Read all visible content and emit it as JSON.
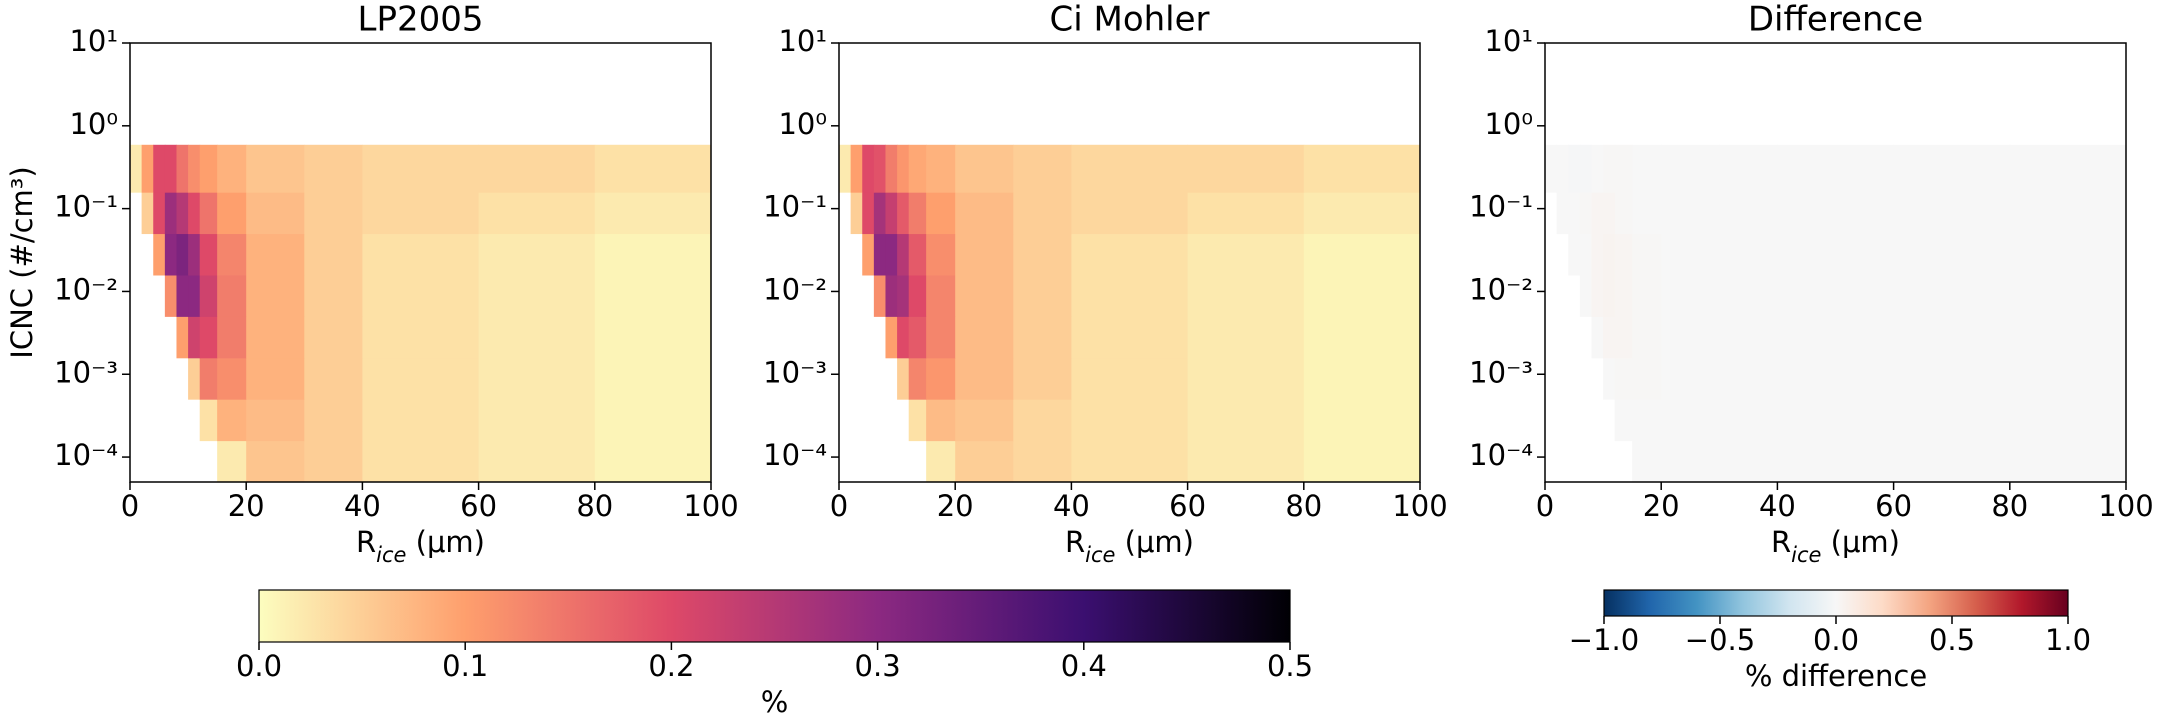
{
  "chart_data": [
    {
      "type": "heatmap",
      "title": "LP2005",
      "xlabel": [
        "R",
        "ice",
        " (μm)"
      ],
      "ylabel": "ICNC (#/cm³)",
      "x_edges": [
        0,
        2,
        4,
        6,
        8,
        10,
        12,
        15,
        20,
        30,
        40,
        60,
        80,
        100
      ],
      "y_edges": [
        5e-05,
        0.000158,
        0.0005,
        0.00158,
        0.005,
        0.0158,
        0.05,
        0.158,
        0.59
      ],
      "values": [
        [
          null,
          null,
          null,
          null,
          null,
          null,
          null,
          0.02,
          0.06,
          0.05,
          0.03,
          0.02,
          0.01
        ],
        [
          null,
          null,
          null,
          null,
          null,
          null,
          0.03,
          0.08,
          0.07,
          0.05,
          0.03,
          0.02,
          0.01
        ],
        [
          null,
          null,
          null,
          null,
          null,
          0.05,
          0.14,
          0.12,
          0.08,
          0.05,
          0.03,
          0.02,
          0.01
        ],
        [
          null,
          null,
          null,
          null,
          0.1,
          0.22,
          0.2,
          0.14,
          0.08,
          0.05,
          0.03,
          0.02,
          0.01
        ],
        [
          null,
          null,
          null,
          0.12,
          0.3,
          0.3,
          0.22,
          0.14,
          0.08,
          0.05,
          0.03,
          0.02,
          0.01
        ],
        [
          null,
          null,
          0.1,
          0.3,
          0.32,
          0.28,
          0.2,
          0.13,
          0.08,
          0.05,
          0.03,
          0.02,
          0.01
        ],
        [
          null,
          0.05,
          0.2,
          0.28,
          0.25,
          0.2,
          0.15,
          0.1,
          0.07,
          0.05,
          0.04,
          0.03,
          0.02
        ],
        [
          0.02,
          0.1,
          0.2,
          0.2,
          0.15,
          0.12,
          0.1,
          0.08,
          0.06,
          0.05,
          0.04,
          0.04,
          0.03
        ]
      ],
      "xlim": [
        0,
        100
      ],
      "xticks": [
        0,
        20,
        40,
        60,
        80,
        100
      ],
      "ylim": [
        5e-05,
        10
      ],
      "log_y": true,
      "yticks": [
        {
          "value": 10,
          "label": "10¹"
        },
        {
          "value": 1,
          "label": "10⁰"
        },
        {
          "value": 0.1,
          "label": "10⁻¹"
        },
        {
          "value": 0.01,
          "label": "10⁻²"
        },
        {
          "value": 0.001,
          "label": "10⁻³"
        },
        {
          "value": 0.0001,
          "label": "10⁻⁴"
        }
      ]
    },
    {
      "type": "heatmap",
      "title": "Ci Mohler",
      "xlabel": [
        "R",
        "ice",
        " (μm)"
      ],
      "x_edges": [
        0,
        2,
        4,
        6,
        8,
        10,
        12,
        15,
        20,
        30,
        40,
        60,
        80,
        100
      ],
      "y_edges": [
        5e-05,
        0.000158,
        0.0005,
        0.00158,
        0.005,
        0.0158,
        0.05,
        0.158,
        0.59
      ],
      "values": [
        [
          null,
          null,
          null,
          null,
          null,
          null,
          null,
          0.02,
          0.05,
          0.04,
          0.03,
          0.02,
          0.01
        ],
        [
          null,
          null,
          null,
          null,
          null,
          null,
          0.03,
          0.07,
          0.06,
          0.04,
          0.03,
          0.02,
          0.01
        ],
        [
          null,
          null,
          null,
          null,
          null,
          0.05,
          0.13,
          0.11,
          0.07,
          0.05,
          0.03,
          0.02,
          0.01
        ],
        [
          null,
          null,
          null,
          null,
          0.1,
          0.2,
          0.18,
          0.13,
          0.07,
          0.05,
          0.03,
          0.02,
          0.01
        ],
        [
          null,
          null,
          null,
          0.12,
          0.28,
          0.27,
          0.2,
          0.13,
          0.07,
          0.05,
          0.03,
          0.02,
          0.01
        ],
        [
          null,
          null,
          0.1,
          0.3,
          0.3,
          0.25,
          0.18,
          0.12,
          0.07,
          0.05,
          0.03,
          0.02,
          0.01
        ],
        [
          null,
          0.05,
          0.2,
          0.27,
          0.23,
          0.18,
          0.14,
          0.1,
          0.07,
          0.05,
          0.04,
          0.03,
          0.02
        ],
        [
          0.02,
          0.1,
          0.2,
          0.19,
          0.14,
          0.11,
          0.09,
          0.08,
          0.06,
          0.05,
          0.04,
          0.04,
          0.03
        ]
      ],
      "xlim": [
        0,
        100
      ],
      "xticks": [
        0,
        20,
        40,
        60,
        80,
        100
      ],
      "ylim": [
        5e-05,
        10
      ],
      "log_y": true,
      "yticks": [
        {
          "value": 10,
          "label": "10¹"
        },
        {
          "value": 1,
          "label": "10⁰"
        },
        {
          "value": 0.1,
          "label": "10⁻¹"
        },
        {
          "value": 0.01,
          "label": "10⁻²"
        },
        {
          "value": 0.001,
          "label": "10⁻³"
        },
        {
          "value": 0.0001,
          "label": "10⁻⁴"
        }
      ]
    },
    {
      "type": "heatmap",
      "title": "Difference",
      "xlabel": [
        "R",
        "ice",
        " (μm)"
      ],
      "x_edges": [
        0,
        2,
        4,
        6,
        8,
        10,
        12,
        15,
        20,
        30,
        40,
        60,
        80,
        100
      ],
      "y_edges": [
        5e-05,
        0.000158,
        0.0005,
        0.00158,
        0.005,
        0.0158,
        0.05,
        0.158,
        0.59
      ],
      "values": [
        [
          null,
          null,
          null,
          null,
          null,
          null,
          null,
          0,
          0,
          0,
          0,
          0,
          0
        ],
        [
          null,
          null,
          null,
          null,
          null,
          null,
          0,
          0,
          0,
          0,
          0,
          0,
          0
        ],
        [
          null,
          null,
          null,
          null,
          null,
          0,
          0.01,
          0.01,
          0,
          0,
          0,
          0,
          0
        ],
        [
          null,
          null,
          null,
          null,
          0,
          0.02,
          0.02,
          0.01,
          0,
          0,
          0,
          0,
          0
        ],
        [
          null,
          null,
          null,
          0,
          0.02,
          0.03,
          0.02,
          0.01,
          0,
          0,
          0,
          0,
          0
        ],
        [
          null,
          null,
          0,
          0,
          0.02,
          0.03,
          0.02,
          0.01,
          0,
          0,
          0,
          0,
          0
        ],
        [
          null,
          0,
          0,
          0.01,
          0.02,
          0.02,
          0.01,
          0,
          0,
          0,
          0,
          0,
          0
        ],
        [
          0,
          0,
          -0.01,
          -0.01,
          0,
          0.01,
          0.01,
          0,
          0,
          0,
          0,
          0,
          0
        ]
      ],
      "xlim": [
        0,
        100
      ],
      "xticks": [
        0,
        20,
        40,
        60,
        80,
        100
      ],
      "ylim": [
        5e-05,
        10
      ],
      "log_y": true,
      "yticks": [
        {
          "value": 10,
          "label": "10¹"
        },
        {
          "value": 1,
          "label": "10⁰"
        },
        {
          "value": 0.1,
          "label": "10⁻¹"
        },
        {
          "value": 0.01,
          "label": "10⁻²"
        },
        {
          "value": 0.001,
          "label": "10⁻³"
        },
        {
          "value": 0.0001,
          "label": "10⁻⁴"
        }
      ]
    },
    {
      "type": "colorbar",
      "label": "%",
      "vlim": [
        0,
        0.5
      ],
      "colors": [
        "#fcfdbf",
        "#fe9f6d",
        "#de4968",
        "#8c2981",
        "#3b0f70",
        "#000004"
      ],
      "ticks": [
        {
          "value": 0,
          "label": "0.0"
        },
        0.1,
        0.2,
        0.3,
        0.4,
        0.5
      ]
    },
    {
      "type": "colorbar",
      "label": "% difference",
      "vlim": [
        -1,
        1
      ],
      "colors": [
        "#053061",
        "#2166ac",
        "#4393c3",
        "#92c5de",
        "#d1e5f0",
        "#f7f7f7",
        "#fddbc7",
        "#f4a582",
        "#d6604d",
        "#b2182b",
        "#67001f"
      ],
      "ticks": [
        {
          "value": -1,
          "label": "−1.0"
        },
        {
          "value": -0.5,
          "label": "−0.5"
        },
        {
          "value": 0,
          "label": "0.0"
        },
        0.5,
        {
          "value": 1,
          "label": "1.0"
        }
      ]
    }
  ]
}
